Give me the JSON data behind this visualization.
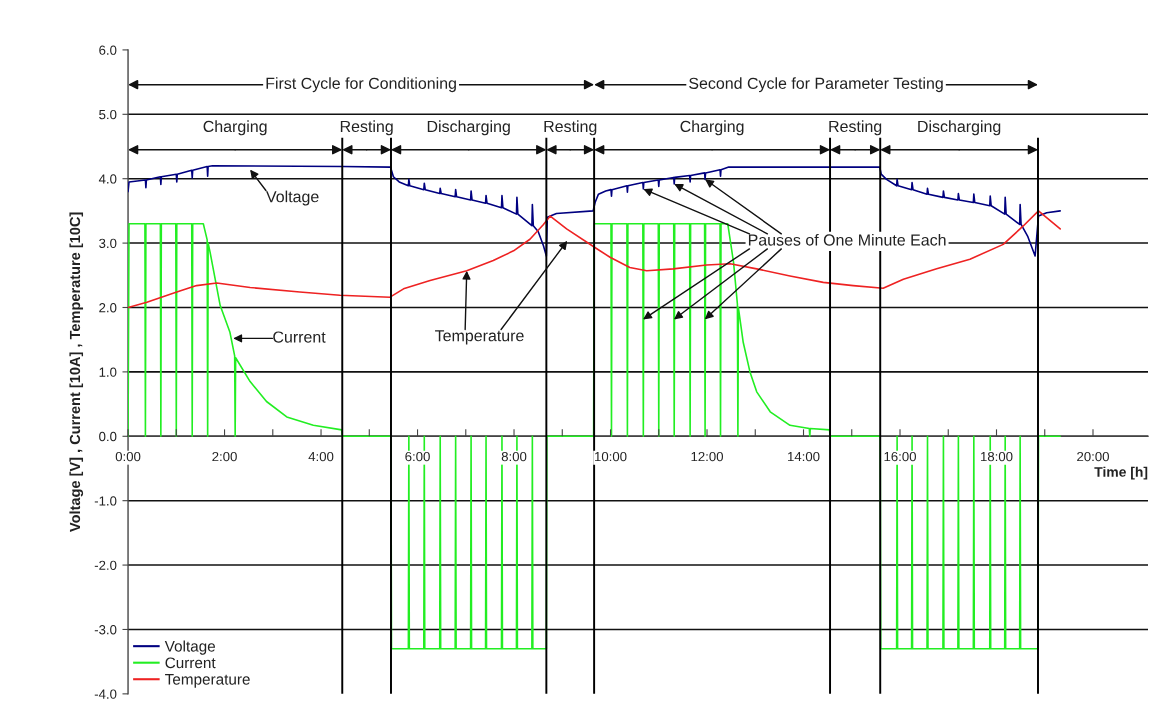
{
  "chart_data": {
    "type": "line",
    "xlabel": "Time [h]",
    "ylabel": "Voltage [V] , Current [10A] , Temperature [10C]",
    "xlim": [
      0,
      21.14
    ],
    "xticks": [
      {
        "value": 0,
        "label": "0:00"
      },
      {
        "value": 1,
        "label": null
      },
      {
        "value": 2,
        "label": "2:00"
      },
      {
        "value": 3,
        "label": null
      },
      {
        "value": 4,
        "label": "4:00"
      },
      {
        "value": 5,
        "label": null
      },
      {
        "value": 6,
        "label": "6:00"
      },
      {
        "value": 7,
        "label": null
      },
      {
        "value": 8,
        "label": "8:00"
      },
      {
        "value": 9,
        "label": null
      },
      {
        "value": 10,
        "label": "10:00"
      },
      {
        "value": 11,
        "label": null
      },
      {
        "value": 12,
        "label": "12:00"
      },
      {
        "value": 13,
        "label": null
      },
      {
        "value": 14,
        "label": "14:00"
      },
      {
        "value": 15,
        "label": null
      },
      {
        "value": 16,
        "label": "16:00"
      },
      {
        "value": 17,
        "label": null
      },
      {
        "value": 18,
        "label": "18:00"
      },
      {
        "value": 19,
        "label": null
      },
      {
        "value": 20,
        "label": "20:00"
      }
    ],
    "ylim": [
      -4,
      6
    ],
    "yticks": [
      {
        "value": -4,
        "label": "-4.0"
      },
      {
        "value": -3,
        "label": "-3.0"
      },
      {
        "value": -2,
        "label": "-2.0"
      },
      {
        "value": -1,
        "label": "-1.0"
      },
      {
        "value": 0,
        "label": "0.0"
      },
      {
        "value": 1,
        "label": "1.0"
      },
      {
        "value": 2,
        "label": "2.0"
      },
      {
        "value": 3,
        "label": "3.0"
      },
      {
        "value": 4,
        "label": "4.0"
      },
      {
        "value": 5,
        "label": "5.0"
      },
      {
        "value": 6,
        "label": "6.0"
      }
    ],
    "grid": "y",
    "legend": "bottom left",
    "series": [
      {
        "name": "Voltage",
        "color": "#000080",
        "x": [
          0,
          0.02,
          0.36,
          0.37,
          0.38,
          0.67,
          0.68,
          0.69,
          1.0,
          1.01,
          1.02,
          1.32,
          1.33,
          1.34,
          1.64,
          1.65,
          1.66,
          1.75,
          4.44,
          5.44,
          5.5,
          5.62,
          5.81,
          5.82,
          5.84,
          6.13,
          6.14,
          6.16,
          6.46,
          6.47,
          6.49,
          6.78,
          6.79,
          6.81,
          7.1,
          7.11,
          7.13,
          7.41,
          7.42,
          7.44,
          7.74,
          7.75,
          7.77,
          8.05,
          8.06,
          8.08,
          8.37,
          8.38,
          8.4,
          8.5,
          8.61,
          8.67,
          8.69,
          8.88,
          9.64,
          9.68,
          9.75,
          9.9,
          10.01,
          10.02,
          10.03,
          10.34,
          10.35,
          10.36,
          10.67,
          10.68,
          10.69,
          10.99,
          11.0,
          11.01,
          11.31,
          11.32,
          11.33,
          11.64,
          11.65,
          11.66,
          11.95,
          11.96,
          11.97,
          12.27,
          12.28,
          12.29,
          12.45,
          15.58,
          15.61,
          15.72,
          15.93,
          15.94,
          15.96,
          16.24,
          16.25,
          16.27,
          16.56,
          16.57,
          16.59,
          16.89,
          16.9,
          16.92,
          17.2,
          17.21,
          17.23,
          17.52,
          17.53,
          17.55,
          17.86,
          17.87,
          17.89,
          18.17,
          18.18,
          18.2,
          18.48,
          18.49,
          18.51,
          18.65,
          18.8,
          18.87,
          19.04,
          19.32
        ],
        "values": [
          3.8,
          3.95,
          3.98,
          3.86,
          3.98,
          4.03,
          3.91,
          4.03,
          4.07,
          3.95,
          4.07,
          4.13,
          4.01,
          4.13,
          4.19,
          4.04,
          4.19,
          4.2,
          4.19,
          4.18,
          4.03,
          3.95,
          3.89,
          3.99,
          3.89,
          3.83,
          3.93,
          3.83,
          3.77,
          3.85,
          3.77,
          3.72,
          3.83,
          3.72,
          3.67,
          3.81,
          3.67,
          3.62,
          3.74,
          3.62,
          3.55,
          3.74,
          3.55,
          3.45,
          3.71,
          3.45,
          3.27,
          3.6,
          3.27,
          3.18,
          2.96,
          2.8,
          3.4,
          3.46,
          3.5,
          3.63,
          3.76,
          3.81,
          3.83,
          3.73,
          3.83,
          3.89,
          3.79,
          3.89,
          3.94,
          3.84,
          3.94,
          3.98,
          3.88,
          3.98,
          4.02,
          3.92,
          4.02,
          4.05,
          3.95,
          4.05,
          4.09,
          3.99,
          4.09,
          4.14,
          4.04,
          4.14,
          4.18,
          4.18,
          4.07,
          3.99,
          3.89,
          3.99,
          3.89,
          3.83,
          3.94,
          3.83,
          3.76,
          3.85,
          3.76,
          3.71,
          3.81,
          3.71,
          3.67,
          3.77,
          3.67,
          3.63,
          3.76,
          3.63,
          3.58,
          3.73,
          3.58,
          3.45,
          3.71,
          3.45,
          3.29,
          3.6,
          3.29,
          3.1,
          2.8,
          3.42,
          3.47,
          3.5
        ]
      },
      {
        "name": "Current",
        "color": "#22ee22",
        "x": [
          0,
          0.02,
          0.35,
          0.36,
          0.37,
          0.67,
          0.68,
          0.69,
          0.99,
          1.0,
          1.01,
          1.32,
          1.33,
          1.34,
          1.56,
          1.64,
          1.65,
          1.66,
          1.7,
          1.91,
          2.11,
          2.21,
          2.22,
          2.23,
          2.53,
          2.87,
          3.29,
          3.84,
          4.43,
          4.44,
          5.45,
          5.46,
          5.81,
          5.82,
          5.83,
          6.13,
          6.14,
          6.15,
          6.46,
          6.47,
          6.48,
          6.78,
          6.79,
          6.8,
          7.1,
          7.11,
          7.12,
          7.41,
          7.42,
          7.43,
          7.74,
          7.75,
          7.76,
          8.05,
          8.06,
          8.07,
          8.37,
          8.38,
          8.39,
          8.67,
          8.68,
          9.65,
          9.66,
          10.01,
          10.02,
          10.03,
          10.34,
          10.35,
          10.36,
          10.67,
          10.68,
          10.69,
          10.99,
          11.0,
          11.01,
          11.31,
          11.32,
          11.33,
          11.64,
          11.65,
          11.66,
          11.95,
          11.96,
          11.97,
          12.27,
          12.28,
          12.29,
          12.43,
          12.55,
          12.63,
          12.64,
          12.65,
          12.75,
          12.89,
          13.03,
          13.31,
          13.72,
          14.12,
          14.13,
          14.14,
          14.54,
          14.55,
          15.59,
          15.6,
          15.93,
          15.94,
          15.95,
          16.24,
          16.25,
          16.26,
          16.56,
          16.57,
          16.58,
          16.89,
          16.9,
          16.91,
          17.2,
          17.21,
          17.22,
          17.52,
          17.53,
          17.54,
          17.86,
          17.87,
          17.88,
          18.17,
          18.18,
          18.19,
          18.48,
          18.49,
          18.5,
          18.86,
          18.87,
          19.32
        ],
        "values": [
          0,
          3.3,
          3.3,
          0,
          3.3,
          3.3,
          0,
          3.3,
          3.3,
          0,
          3.3,
          3.3,
          0,
          3.3,
          3.3,
          3.05,
          0,
          3.0,
          2.86,
          2.03,
          1.62,
          1.25,
          0,
          1.22,
          0.85,
          0.54,
          0.3,
          0.17,
          0.1,
          0,
          0,
          -3.3,
          -3.3,
          0,
          -3.3,
          -3.3,
          0,
          -3.3,
          -3.3,
          0,
          -3.3,
          -3.3,
          0,
          -3.3,
          -3.3,
          0,
          -3.3,
          -3.3,
          0,
          -3.3,
          -3.3,
          0,
          -3.3,
          -3.3,
          0,
          -3.3,
          -3.3,
          0,
          -3.3,
          -3.3,
          0,
          0,
          3.3,
          3.3,
          0,
          3.3,
          3.3,
          0,
          3.3,
          3.3,
          0,
          3.3,
          3.3,
          0,
          3.3,
          3.3,
          0,
          3.3,
          3.3,
          0,
          3.3,
          3.3,
          0,
          3.3,
          3.3,
          0,
          3.3,
          3.3,
          2.7,
          2.05,
          0,
          2.0,
          1.46,
          1.0,
          0.69,
          0.38,
          0.17,
          0.12,
          0,
          0.12,
          0.1,
          0,
          0,
          -3.3,
          -3.3,
          0,
          -3.3,
          -3.3,
          0,
          -3.3,
          -3.3,
          0,
          -3.3,
          -3.3,
          0,
          -3.3,
          -3.3,
          0,
          -3.3,
          -3.3,
          0,
          -3.3,
          -3.3,
          0,
          -3.3,
          -3.3,
          0,
          -3.3,
          -3.3,
          0,
          -3.3,
          -3.3,
          0,
          0
        ]
      },
      {
        "name": "Temperature",
        "color": "#ee2222",
        "x": [
          0,
          0.39,
          1.01,
          1.42,
          1.84,
          2.53,
          3.56,
          4.39,
          5.43,
          5.71,
          6.26,
          7.02,
          7.57,
          7.99,
          8.33,
          8.61,
          8.75,
          9.09,
          9.66,
          9.99,
          10.4,
          10.75,
          11.3,
          11.99,
          12.48,
          13.03,
          13.72,
          14.41,
          15.03,
          15.65,
          16.07,
          16.76,
          17.45,
          18.14,
          18.56,
          18.87,
          19.32
        ],
        "values": [
          2.0,
          2.08,
          2.24,
          2.34,
          2.38,
          2.31,
          2.24,
          2.19,
          2.16,
          2.29,
          2.42,
          2.57,
          2.73,
          2.88,
          3.06,
          3.29,
          3.42,
          3.22,
          2.94,
          2.78,
          2.62,
          2.57,
          2.6,
          2.66,
          2.68,
          2.6,
          2.49,
          2.39,
          2.34,
          2.3,
          2.44,
          2.6,
          2.75,
          2.98,
          3.27,
          3.5,
          3.22
        ]
      }
    ],
    "ref_lines": [
      {
        "axis": "x",
        "value": 4.44,
        "color": "#000000"
      },
      {
        "axis": "x",
        "value": 5.45,
        "color": "#000000"
      },
      {
        "axis": "x",
        "value": 8.67,
        "color": "#000000"
      },
      {
        "axis": "x",
        "value": 9.66,
        "color": "#000000"
      },
      {
        "axis": "x",
        "value": 14.55,
        "color": "#000000"
      },
      {
        "axis": "x",
        "value": 15.59,
        "color": "#000000"
      },
      {
        "axis": "x",
        "value": 18.86,
        "color": "#000000"
      }
    ],
    "annotations": [
      "First Cycle for Conditioning",
      "Second Cycle for Parameter Testing",
      {
        "text": "Charging",
        "x": 4.44,
        "y": 4.45
      },
      {
        "text": "Resting",
        "x": 5.45,
        "y": 4.45
      },
      {
        "text": "Discharging",
        "x": 8.67,
        "y": 4.45
      },
      {
        "text": "Resting",
        "x": 9.66,
        "y": 4.45
      },
      {
        "text": "Charging",
        "x": 14.55,
        "y": 4.45
      },
      {
        "text": "Resting",
        "x": 15.59,
        "y": 4.45
      },
      {
        "text": "Discharging",
        "x": 18.86,
        "y": 4.45
      },
      {
        "text": "Voltage",
        "x": 2.53,
        "y": 4.14
      },
      {
        "text": "Pauses of One Minute Each",
        "x": 10.68,
        "y": 3.84
      },
      {
        "text": "Current",
        "x": 2.18,
        "y": 1.52
      },
      {
        "text": "Temperature",
        "x": 7.02,
        "y": 2.57
      }
    ]
  }
}
